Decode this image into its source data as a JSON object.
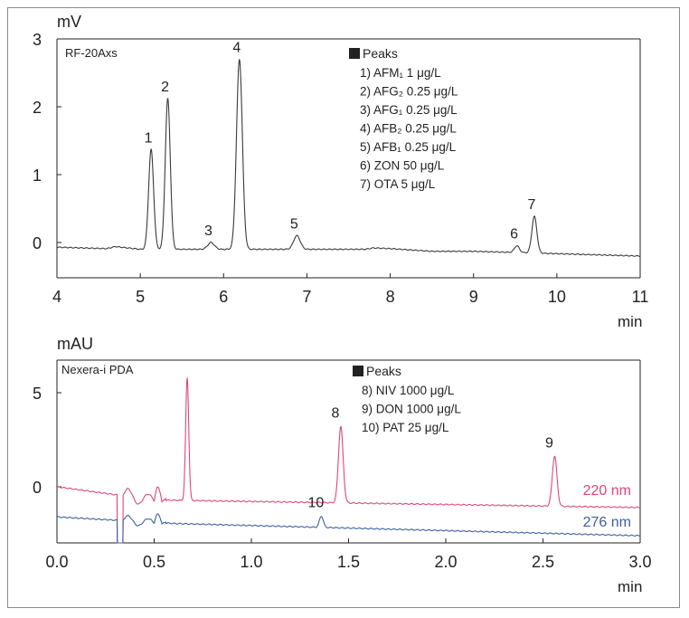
{
  "chart_data": [
    {
      "type": "line",
      "ylabel": "mV",
      "xlabel": "min",
      "instrument": "RF-20Axs",
      "xlim": [
        4,
        11
      ],
      "ylim": [
        -0.5,
        3
      ],
      "xticks": [
        "4",
        "5",
        "6",
        "7",
        "8",
        "9",
        "10",
        "11"
      ],
      "yticks": [
        "0",
        "1",
        "2",
        "3"
      ],
      "legend_title": "Peaks",
      "legend": [
        "1) AFM₁ 1 μg/L",
        "2) AFG₂ 0.25 μg/L",
        "3) AFG₁ 0.25 μg/L",
        "4) AFB₂ 0.25 μg/L",
        "5) AFB₁ 0.25 μg/L",
        "6) ZON 50 μg/L",
        "7) OTA 5 μg/L"
      ],
      "baseline": [
        [
          4.0,
          -0.07
        ],
        [
          4.6,
          -0.09
        ],
        [
          4.7,
          -0.06
        ],
        [
          5.0,
          -0.1
        ],
        [
          7.7,
          -0.1
        ],
        [
          7.8,
          -0.08
        ],
        [
          8.0,
          -0.09
        ],
        [
          8.5,
          -0.13
        ],
        [
          9.0,
          -0.13
        ],
        [
          11.0,
          -0.2
        ]
      ],
      "peaks": [
        {
          "label": "1",
          "x": 5.13,
          "height": 1.47,
          "width": 0.03
        },
        {
          "label": "2",
          "x": 5.33,
          "height": 2.22,
          "width": 0.03
        },
        {
          "label": "3",
          "x": 5.85,
          "height": 0.1,
          "width": 0.04
        },
        {
          "label": "4",
          "x": 6.19,
          "height": 2.8,
          "width": 0.035
        },
        {
          "label": "5",
          "x": 6.88,
          "height": 0.2,
          "width": 0.04
        },
        {
          "label": "6",
          "x": 9.52,
          "height": 0.1,
          "width": 0.03
        },
        {
          "label": "7",
          "x": 9.73,
          "height": 0.54,
          "width": 0.03
        }
      ]
    },
    {
      "type": "line",
      "ylabel": "mAU",
      "xlabel": "min",
      "instrument": "Nexera-i PDA",
      "xlim": [
        0,
        3
      ],
      "ylim": [
        -3.2,
        7.5
      ],
      "xticks": [
        "0.0",
        "0.5",
        "1.0",
        "1.5",
        "2.0",
        "2.5",
        "3.0"
      ],
      "yticks": [
        "0",
        "5"
      ],
      "legend_title": "Peaks",
      "legend": [
        "8) NIV 1000 μg/L",
        "9) DON 1000 μg/L",
        "10) PAT 25 μg/L"
      ],
      "series": [
        {
          "name": "220 nm",
          "color": "#e0457a",
          "baseline": [
            [
              0.0,
              0.0
            ],
            [
              0.5,
              -0.7
            ],
            [
              3.0,
              -1.1
            ]
          ],
          "peaks": [
            {
              "label": "",
              "x": 0.67,
              "height": 6.5,
              "width": 0.008
            },
            {
              "label": "8",
              "x": 1.46,
              "height": 4.05,
              "width": 0.012
            },
            {
              "label": "9",
              "x": 2.56,
              "height": 2.65,
              "width": 0.012
            }
          ]
        },
        {
          "name": "276 nm",
          "color": "#3d5f9e",
          "baseline": [
            [
              0.0,
              -1.6
            ],
            [
              0.6,
              -1.95
            ],
            [
              3.0,
              -2.6
            ]
          ],
          "peaks": [
            {
              "label": "10",
              "x": 1.36,
              "height": 0.6,
              "width": 0.01
            }
          ]
        }
      ]
    }
  ]
}
